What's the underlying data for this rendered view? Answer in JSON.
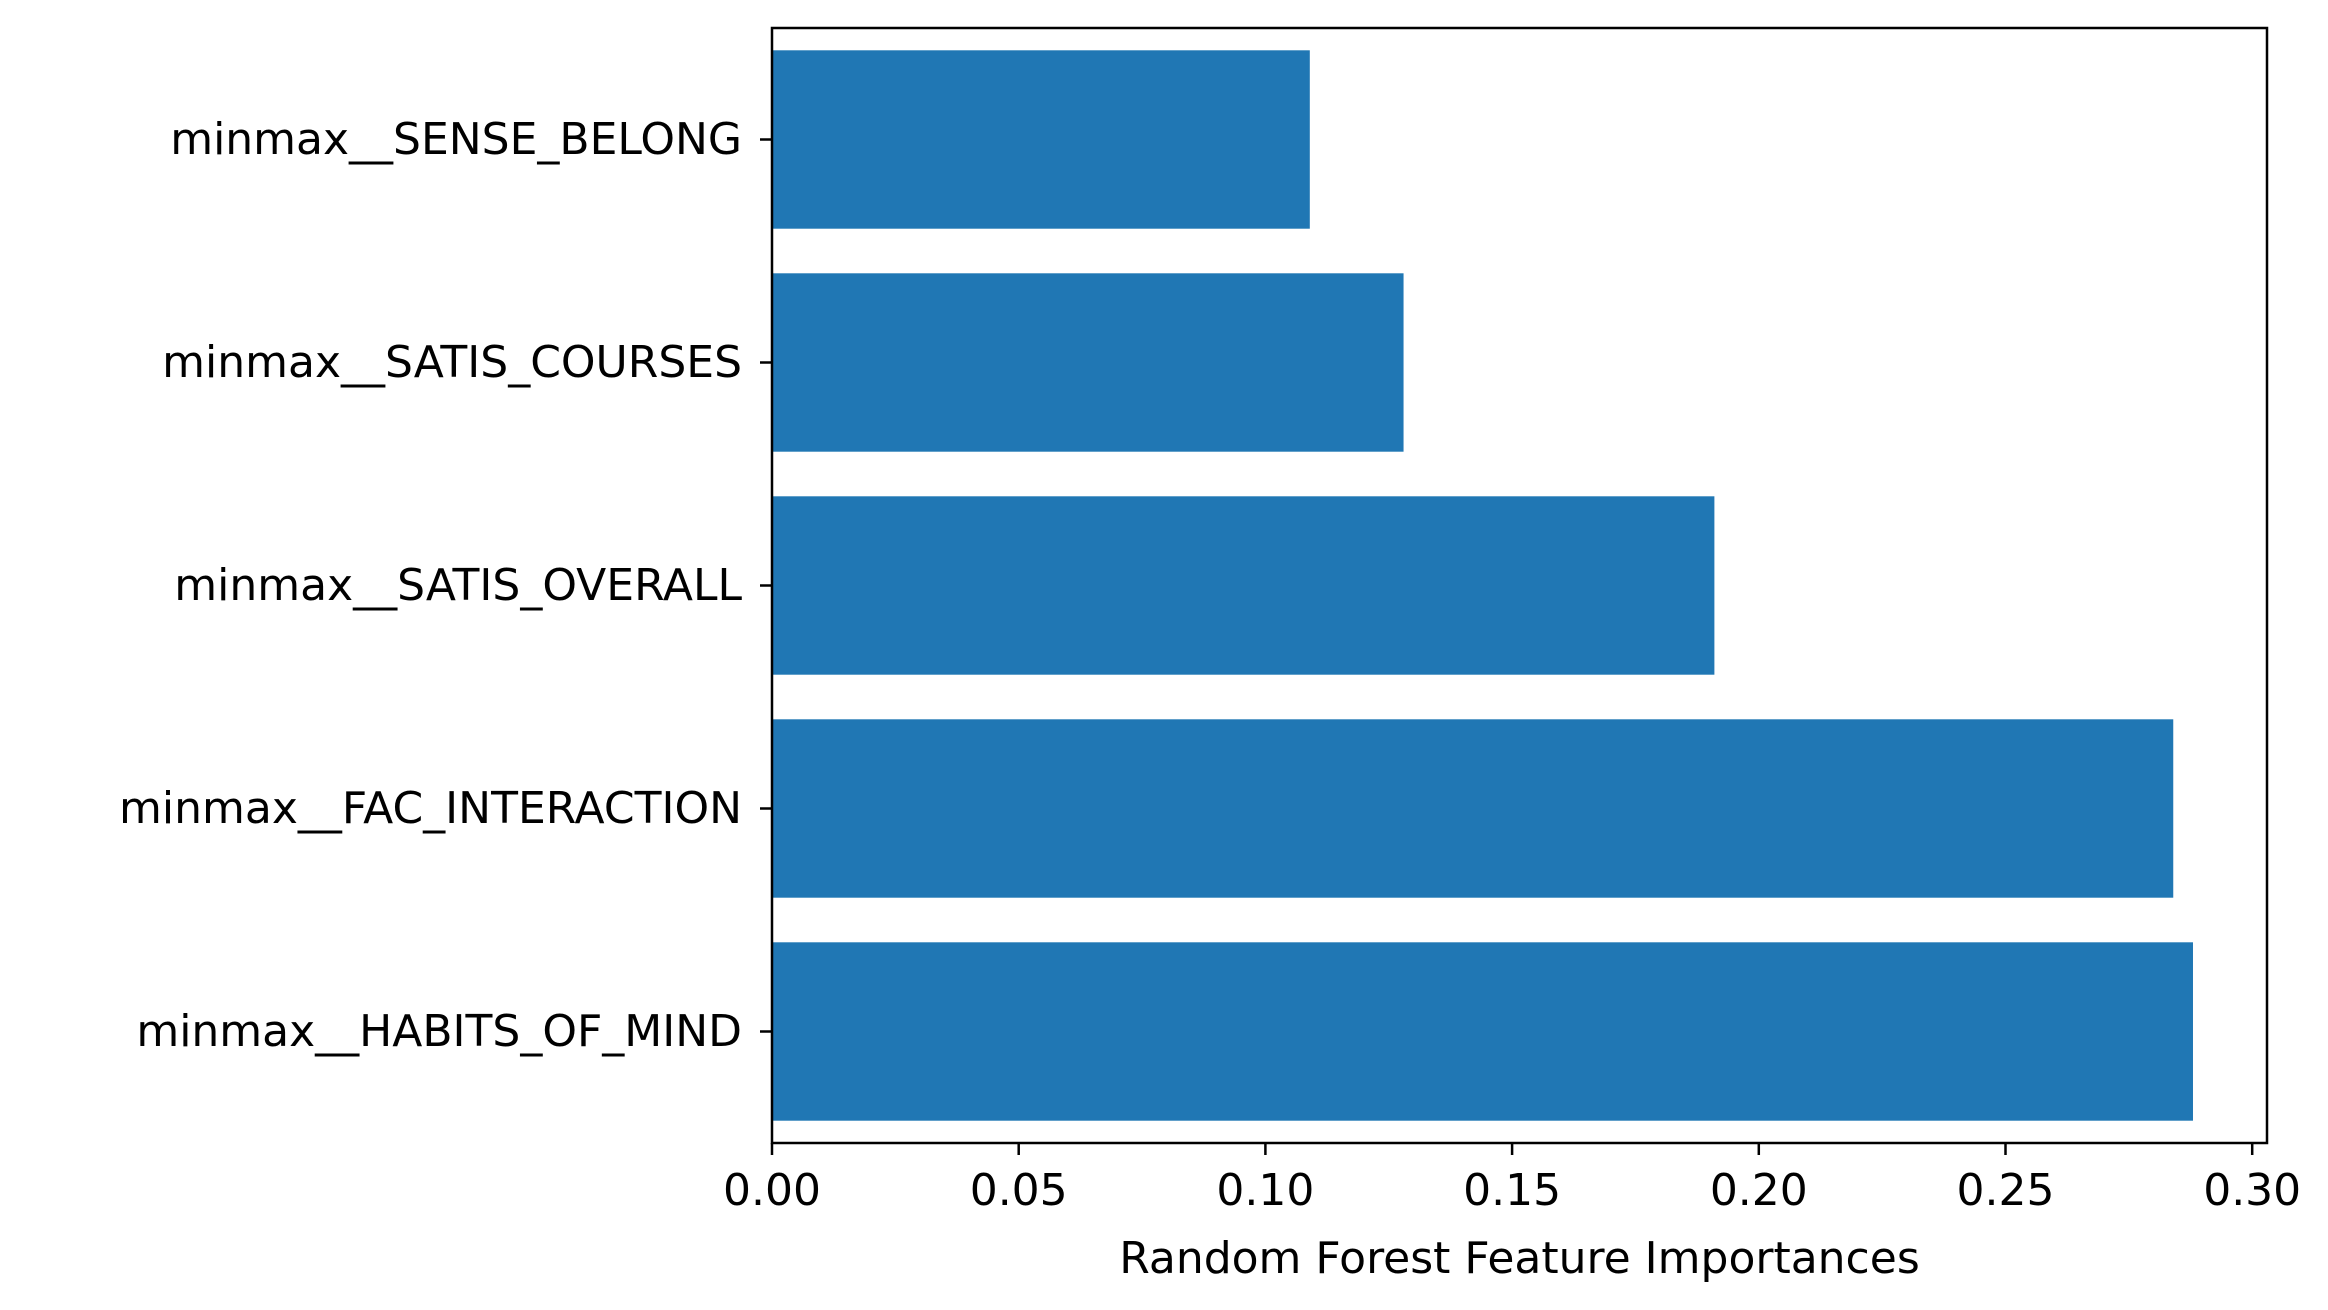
{
  "chart_data": {
    "type": "bar",
    "orientation": "horizontal",
    "categories": [
      "minmax__HABITS_OF_MIND",
      "minmax__FAC_INTERACTION",
      "minmax__SATIS_OVERALL",
      "minmax__SATIS_COURSES",
      "minmax__SENSE_BELONG"
    ],
    "values": [
      0.288,
      0.284,
      0.191,
      0.128,
      0.109
    ],
    "title": "",
    "xlabel": "Random Forest Feature Importances",
    "ylabel": "",
    "xlim": [
      0.0,
      0.303
    ],
    "xticks": [
      "0.00",
      "0.05",
      "0.10",
      "0.15",
      "0.20",
      "0.25",
      "0.30"
    ],
    "xtick_values": [
      0.0,
      0.05,
      0.1,
      0.15,
      0.2,
      0.25,
      0.3
    ],
    "bar_color": "#2077b4",
    "grid": false,
    "legend": false
  }
}
